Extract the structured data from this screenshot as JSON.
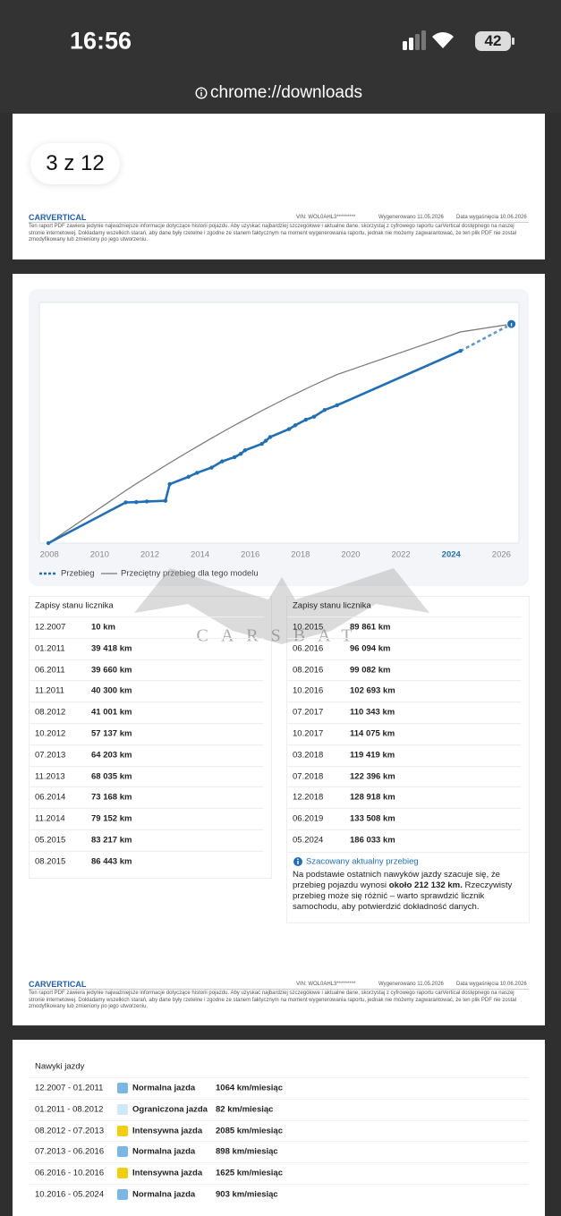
{
  "status_bar": {
    "time": "16:56",
    "battery": "42"
  },
  "url_bar": {
    "url": "chrome://downloads"
  },
  "page_indicator": "3 z 12",
  "footer": {
    "brand": "CARVERTICAL",
    "vin": "VIN: WOL0AHL3*********",
    "generated": "Wygenerowano 11.05.2026",
    "expiry": "Data wygaśnięcia 10.06.2026",
    "disclaimer": "Ten raport PDF zawiera jedynie najważniejsze informacje dotyczące historii pojazdu. Aby uzyskać najbardziej szczegółowe i aktualne dane, skorzystaj z cyfrowego raportu carVertical dostępnego na naszej stronie internetowej. Dokładamy wszelkich starań, aby dane były rzetelne i zgodne ze stanem faktycznym na moment wygenerowania raportu, jednak nie możemy zagwarantować, że ten plik PDF nie został zmodyfikowany lub zmieniony po jego utworzeniu."
  },
  "watermark": "CARSBAT",
  "chart_data": {
    "type": "line",
    "x": [
      2007.96,
      2011.04,
      2011.46,
      2011.88,
      2012.62,
      2012.79,
      2013.54,
      2013.88,
      2014.46,
      2014.88,
      2015.37,
      2015.62,
      2015.79,
      2016.46,
      2016.62,
      2016.79,
      2017.54,
      2017.79,
      2018.21,
      2018.54,
      2018.96,
      2019.46,
      2024.37,
      2026.4
    ],
    "series": [
      {
        "name": "Przebieg",
        "color": "#1f6fb8",
        "last_segment": "dashed",
        "values": [
          10,
          39418,
          39660,
          40300,
          41001,
          57137,
          64203,
          68035,
          73168,
          79152,
          83217,
          86443,
          89861,
          96094,
          99082,
          102693,
          110343,
          114075,
          119419,
          122396,
          128918,
          133508,
          186033,
          212132
        ]
      },
      {
        "name": "Przeciętny przebieg dla tego modelu",
        "color": "#777777",
        "values": [
          0,
          50900,
          57500,
          63900,
          75100,
          77600,
          88600,
          93400,
          101600,
          107400,
          114000,
          117300,
          119500,
          128200,
          130200,
          132300,
          141500,
          144400,
          149300,
          153100,
          157800,
          163200,
          204400,
          212100
        ]
      }
    ],
    "xlim": [
      2007.6,
      2026.7
    ],
    "xticks": [
      2008,
      2010,
      2012,
      2014,
      2016,
      2018,
      2020,
      2022,
      2024,
      2026
    ],
    "highlighted_xtick": 2024,
    "ylim": [
      0,
      233000
    ]
  },
  "records": {
    "title": "Zapisy stanu licznika",
    "left": [
      {
        "date": "12.2007",
        "km": "10 km"
      },
      {
        "date": "01.2011",
        "km": "39 418 km"
      },
      {
        "date": "06.2011",
        "km": "39 660 km"
      },
      {
        "date": "11.2011",
        "km": "40 300 km"
      },
      {
        "date": "08.2012",
        "km": "41 001 km"
      },
      {
        "date": "10.2012",
        "km": "57 137 km"
      },
      {
        "date": "07.2013",
        "km": "64 203 km"
      },
      {
        "date": "11.2013",
        "km": "68 035 km"
      },
      {
        "date": "06.2014",
        "km": "73 168 km"
      },
      {
        "date": "11.2014",
        "km": "79 152 km"
      },
      {
        "date": "05.2015",
        "km": "83 217 km"
      },
      {
        "date": "08.2015",
        "km": "86 443 km"
      }
    ],
    "right": [
      {
        "date": "10.2015",
        "km": "89 861 km"
      },
      {
        "date": "06.2016",
        "km": "96 094 km"
      },
      {
        "date": "08.2016",
        "km": "99 082 km"
      },
      {
        "date": "10.2016",
        "km": "102 693 km"
      },
      {
        "date": "07.2017",
        "km": "110 343 km"
      },
      {
        "date": "10.2017",
        "km": "114 075 km"
      },
      {
        "date": "03.2018",
        "km": "119 419 km"
      },
      {
        "date": "07.2018",
        "km": "122 396 km"
      },
      {
        "date": "12.2018",
        "km": "128 918 km"
      },
      {
        "date": "06.2019",
        "km": "133 508 km"
      },
      {
        "date": "05.2024",
        "km": "186 033 km"
      }
    ]
  },
  "estimate": {
    "title": "Szacowany aktualny przebieg",
    "text_before": "Na podstawie ostatnich nawyków jazdy szacuje się, że przebieg pojazdu wynosi ",
    "text_bold": "około 212 132 km.",
    "text_after": " Rzeczywisty przebieg może się różnić – warto sprawdzić licznik samochodu, aby potwierdzić dokładność danych."
  },
  "habits": {
    "title": "Nawyki jazdy",
    "rows": [
      {
        "period": "12.2007 - 01.2011",
        "color": "#7ab6e6",
        "label": "Normalna jazda",
        "rate": "1064 km/miesiąc"
      },
      {
        "period": "01.2011 - 08.2012",
        "color": "#cde8f8",
        "label": "Ograniczona jazda",
        "rate": "82 km/miesiąc"
      },
      {
        "period": "08.2012 - 07.2013",
        "color": "#f2cf0c",
        "label": "Intensywna jazda",
        "rate": "2085 km/miesiąc"
      },
      {
        "period": "07.2013 - 06.2016",
        "color": "#7ab6e6",
        "label": "Normalna jazda",
        "rate": "898 km/miesiąc"
      },
      {
        "period": "06.2016 - 10.2016",
        "color": "#f2cf0c",
        "label": "Intensywna jazda",
        "rate": "1625 km/miesiąc"
      },
      {
        "period": "10.2016 - 05.2024",
        "color": "#7ab6e6",
        "label": "Normalna jazda",
        "rate": "903 km/miesiąc"
      }
    ]
  }
}
